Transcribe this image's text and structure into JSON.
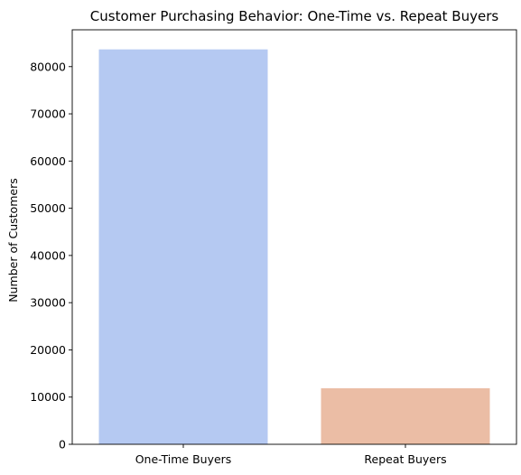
{
  "chart_data": {
    "type": "bar",
    "title": "Customer Purchasing Behavior: One-Time vs. Repeat Buyers",
    "xlabel": "",
    "ylabel": "Number of Customers",
    "categories": [
      "One-Time Buyers",
      "Repeat Buyers"
    ],
    "values": [
      83650,
      11880
    ],
    "colors": [
      "#b5c9f2",
      "#ebbda5"
    ],
    "ylim": [
      0,
      87800
    ],
    "yticks": [
      0,
      10000,
      20000,
      30000,
      40000,
      50000,
      60000,
      70000,
      80000
    ],
    "grid": false,
    "legend": "none"
  }
}
